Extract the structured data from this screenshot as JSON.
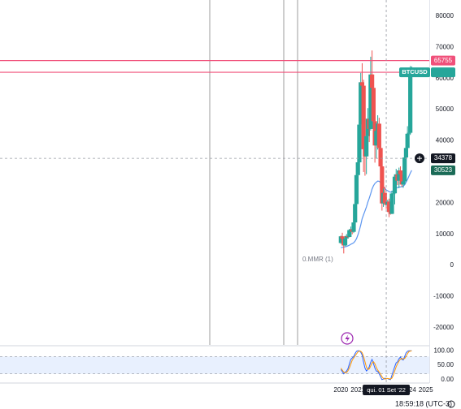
{
  "chart_data": [
    {
      "type": "candlestick",
      "symbol": "BTCUSD",
      "x": [
        2020.0,
        2020.083,
        2020.167,
        2020.25,
        2020.333,
        2020.417,
        2020.5,
        2020.583,
        2020.667,
        2020.75,
        2020.833,
        2020.917,
        2021.0,
        2021.083,
        2021.167,
        2021.25,
        2021.333,
        2021.417,
        2021.5,
        2021.583,
        2021.667,
        2021.75,
        2021.833,
        2021.917,
        2022.0,
        2022.083,
        2022.167,
        2022.25,
        2022.333,
        2022.417,
        2022.5,
        2022.583,
        2022.667,
        2022.75,
        2022.833,
        2022.917,
        2023.0,
        2023.083,
        2023.167,
        2023.25,
        2023.333,
        2023.417,
        2023.5,
        2023.583,
        2023.667,
        2023.75,
        2023.833,
        2023.917,
        2024.0,
        2024.083,
        2024.167
      ],
      "open": [
        7200,
        9350,
        8600,
        6400,
        8650,
        9450,
        9140,
        11350,
        11650,
        10780,
        13800,
        19700,
        29000,
        33100,
        45200,
        58800,
        57700,
        37300,
        35000,
        41500,
        47100,
        43800,
        61300,
        57000,
        46300,
        38500,
        43200,
        45500,
        37700,
        31800,
        19900,
        23300,
        20050,
        19400,
        20500,
        17150,
        16550,
        23100,
        23150,
        28500,
        29250,
        27200,
        30500,
        29250,
        25950,
        26970,
        34650,
        37700,
        42280,
        42580,
        61200
      ],
      "high": [
        9580,
        10500,
        9200,
        9450,
        10080,
        10400,
        11450,
        12480,
        12080,
        14100,
        19900,
        29300,
        41950,
        58350,
        61800,
        64900,
        59600,
        41300,
        42400,
        50500,
        52900,
        67000,
        69000,
        59100,
        47900,
        45800,
        48200,
        47400,
        40000,
        31900,
        24700,
        25200,
        22800,
        21100,
        21450,
        18400,
        23950,
        25250,
        29200,
        31000,
        29800,
        31400,
        31800,
        30050,
        28600,
        35200,
        38400,
        44700,
        48950,
        64000,
        63900
      ],
      "low": [
        6900,
        8450,
        3850,
        6200,
        8100,
        8900,
        9000,
        11000,
        10000,
        10400,
        13200,
        17600,
        28150,
        32300,
        45000,
        47000,
        30000,
        28800,
        29300,
        37400,
        39600,
        43300,
        53300,
        42000,
        33000,
        34300,
        37200,
        37600,
        26700,
        17600,
        18800,
        19550,
        18150,
        18200,
        15500,
        16300,
        16500,
        21400,
        19600,
        26950,
        25800,
        24800,
        28850,
        25300,
        24900,
        26550,
        34100,
        37600,
        38500,
        41900,
        60700
      ],
      "close": [
        9350,
        8600,
        6400,
        8650,
        9450,
        9140,
        11350,
        11650,
        10780,
        13800,
        19700,
        29000,
        33100,
        45200,
        58800,
        57700,
        37300,
        35000,
        41500,
        47100,
        43800,
        61300,
        57000,
        46300,
        38500,
        43200,
        45500,
        37700,
        31800,
        19900,
        23300,
        20050,
        19400,
        20500,
        17150,
        16550,
        23100,
        23150,
        28500,
        29250,
        27200,
        30500,
        29250,
        25950,
        26970,
        34650,
        37700,
        42280,
        42580,
        61200,
        62000
      ],
      "up_color": "#26a69a",
      "down_color": "#ef5350",
      "moving_average": {
        "color": "#5b95f0",
        "values": [
          5700,
          5800,
          5900,
          6000,
          6100,
          6300,
          6500,
          6800,
          7000,
          7300,
          7800,
          8600,
          9800,
          11200,
          13000,
          15000,
          16300,
          17500,
          18800,
          20300,
          21600,
          23000,
          24500,
          25600,
          26300,
          26700,
          27100,
          27000,
          26600,
          25700,
          25300,
          24800,
          24200,
          24000,
          23700,
          23500,
          23700,
          24000,
          24400,
          24800,
          25000,
          25200,
          25200,
          25300,
          25400,
          25900,
          26700,
          27600,
          28600,
          29700,
          30523
        ]
      },
      "levels": [
        {
          "value": 65755,
          "color": "#f0507a"
        }
      ],
      "last_line_color": "#f0507a",
      "crosshair": {
        "x": 2022.667,
        "x_label": "qui. 01 Set '22",
        "y": 34378
      },
      "annotation": "0.MMR (1)",
      "xlim": [
        1999.94,
        2025.2
      ],
      "xticks": [
        2020,
        2021,
        2022,
        2023,
        2024,
        2025
      ],
      "ylim": [
        -25500,
        85200
      ],
      "yticks": [
        80000,
        70000,
        60000,
        50000,
        40000,
        30000,
        20000,
        10000,
        0,
        -10000,
        -20000
      ],
      "grid": false
    },
    {
      "type": "line",
      "x": [
        2020.0,
        2020.083,
        2020.167,
        2020.25,
        2020.333,
        2020.417,
        2020.5,
        2020.583,
        2020.667,
        2020.75,
        2020.833,
        2020.917,
        2021.0,
        2021.083,
        2021.167,
        2021.25,
        2021.333,
        2021.417,
        2021.5,
        2021.583,
        2021.667,
        2021.75,
        2021.833,
        2021.917,
        2022.0,
        2022.083,
        2022.167,
        2022.25,
        2022.333,
        2022.417,
        2022.5,
        2022.583,
        2022.667,
        2022.75,
        2022.833,
        2022.917,
        2023.0,
        2023.083,
        2023.167,
        2023.25,
        2023.333,
        2023.417,
        2023.5,
        2023.583,
        2023.667,
        2023.75,
        2023.833,
        2023.917,
        2024.0,
        2024.083,
        2024.167
      ],
      "series": [
        {
          "color": "#2962ff",
          "values": [
            35,
            28,
            20,
            25,
            30,
            38,
            55,
            70,
            75,
            80,
            90,
            98,
            100,
            100,
            95,
            85,
            60,
            40,
            30,
            35,
            45,
            60,
            70,
            55,
            40,
            30,
            28,
            20,
            10,
            0,
            2,
            5,
            3,
            4,
            1,
            0,
            15,
            30,
            45,
            58,
            62,
            72,
            78,
            70,
            68,
            80,
            92,
            98,
            100,
            100,
            100
          ]
        },
        {
          "color": "#ff9800",
          "values": [
            40,
            33,
            26,
            24,
            25,
            31,
            41,
            54,
            67,
            75,
            82,
            89,
            96,
            99,
            98,
            93,
            80,
            62,
            43,
            35,
            37,
            47,
            58,
            62,
            55,
            42,
            33,
            26,
            19,
            10,
            4,
            2,
            3,
            4,
            3,
            2,
            5,
            15,
            30,
            44,
            55,
            64,
            71,
            73,
            72,
            73,
            80,
            90,
            97,
            99,
            100
          ]
        }
      ],
      "band": [
        20,
        80
      ],
      "ylim": [
        -11.8,
        111.8
      ],
      "yticks": [
        {
          "value": 100,
          "label": "100.00"
        },
        {
          "value": 50,
          "label": "50.00"
        },
        {
          "value": 0,
          "label": "0.00"
        }
      ]
    }
  ],
  "footer": {
    "time": "18:59:18 (UTC-3)"
  }
}
